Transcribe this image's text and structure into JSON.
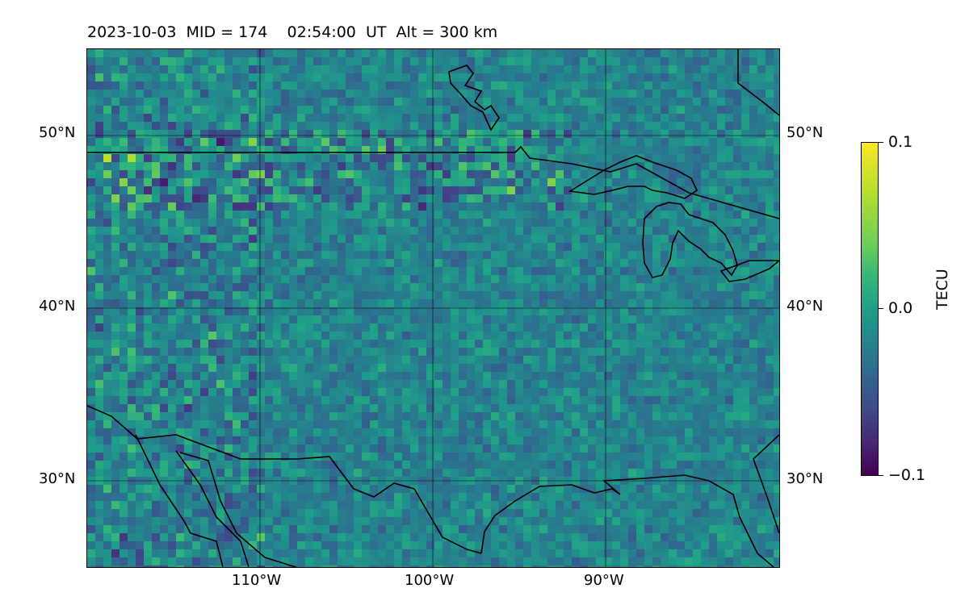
{
  "title": "2023-10-03  MID = 174    02:54:00  UT  Alt = 300 km",
  "map": {
    "lat_labels": [
      "50°N",
      "40°N",
      "30°N"
    ],
    "lon_labels": [
      "110°W",
      "100°W",
      "90°W"
    ],
    "lon_range": [
      -120,
      -80
    ],
    "lat_range": [
      25,
      55
    ]
  },
  "colorbar": {
    "label": "TECU",
    "ticks": [
      "0.1",
      "0.0",
      "−0.1"
    ],
    "min": -0.1,
    "max": 0.1,
    "colormap": "viridis"
  }
}
